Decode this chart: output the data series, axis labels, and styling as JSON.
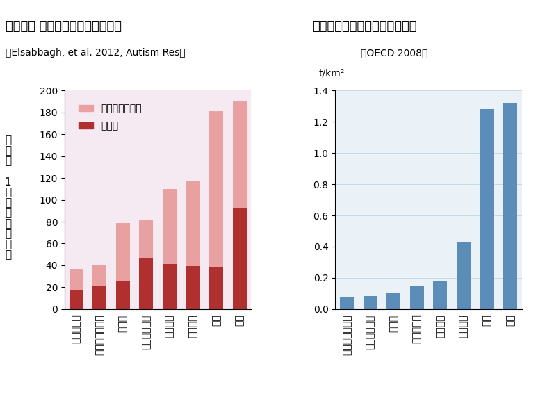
{
  "left_title": "自閉症、 広汎性発達障害の有病率",
  "left_subtitle": "（Elsabbagh, et al. 2012, Autism Res）",
  "left_ylabel": "有病率　1万人当りの人数",
  "left_ylabel_short": "有\n病\n率\n\n1\n万\n人\n当\nり\nの\n人\n数",
  "left_categories": [
    "デンマーク",
    "オーストラリア",
    "カナダ",
    "スウェーデン",
    "アメリカ",
    "イギリス",
    "日本",
    "韓国"
  ],
  "left_autism_values": [
    17,
    21,
    26,
    46,
    41,
    39,
    38,
    93
  ],
  "left_total_values": [
    37,
    40,
    79,
    81,
    110,
    117,
    181,
    190
  ],
  "left_color_autism": "#b03030",
  "left_color_pdd": "#e8a0a0",
  "left_bg_color": "#f5eaf2",
  "left_ylim": [
    0,
    200
  ],
  "left_yticks": [
    0,
    20,
    40,
    60,
    80,
    100,
    120,
    140,
    160,
    180,
    200
  ],
  "right_title": "農地単位面積当たり農薬使用量",
  "right_subtitle": "（OECD 2008）",
  "right_ylabel": "t/km²",
  "right_categories": [
    "オーストラリア",
    "スウェーデン",
    "カナダ",
    "デンマーク",
    "アメリカ",
    "イギリス",
    "日本",
    "韓国"
  ],
  "right_values": [
    0.076,
    0.085,
    0.1,
    0.15,
    0.175,
    0.43,
    1.28,
    1.32
  ],
  "right_color": "#5b8db8",
  "right_bg_color": "#eaf2f8",
  "right_ylim": [
    0,
    1.4
  ],
  "right_yticks": [
    0,
    0.2,
    0.4,
    0.6,
    0.8,
    1.0,
    1.2,
    1.4
  ]
}
